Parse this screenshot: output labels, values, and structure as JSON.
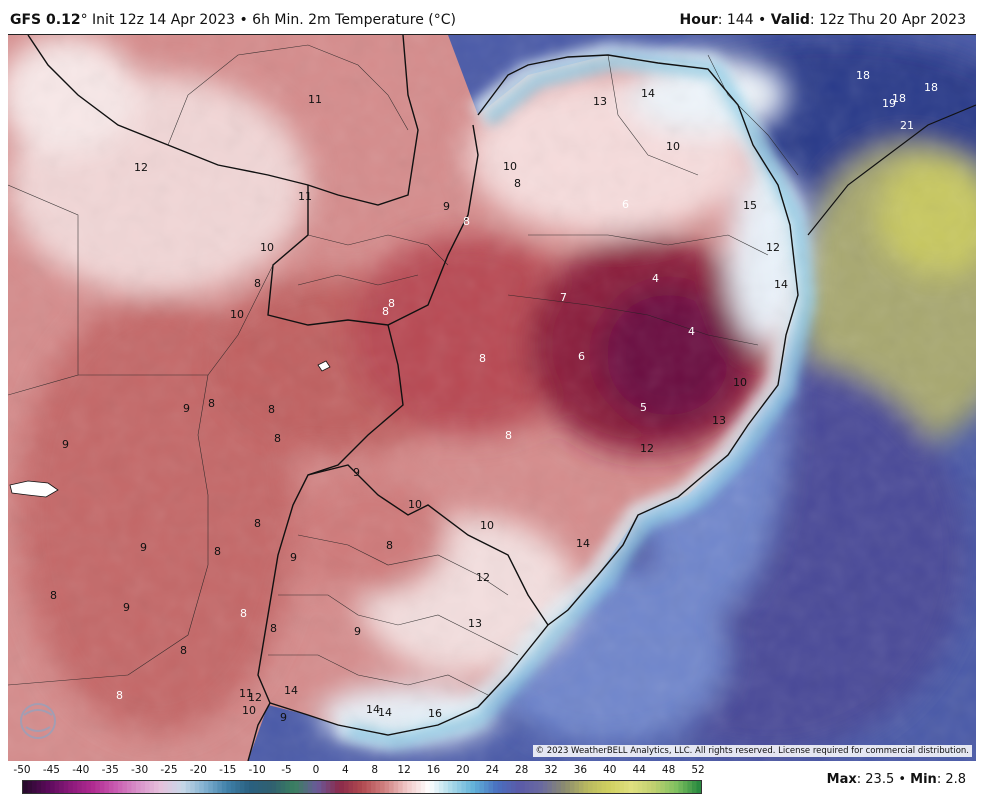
{
  "header": {
    "model": "GFS 0.12",
    "degree_sign": "°",
    "run_info": " Init 12z 14 Apr 2023 • 6h Min. 2m Temperature (°C)",
    "hour_label": "Hour",
    "hour_value": ": 144 • ",
    "valid_label": "Valid",
    "valid_value": ": 12z Thu 20 Apr 2023"
  },
  "map": {
    "copyright": "© 2023 WeatherBELL Analytics, LLC. All rights reserved. License required for commercial distribution.",
    "labels": [
      {
        "text": "11"
      },
      {
        "text": "12"
      },
      {
        "text": "11"
      },
      {
        "text": "9"
      },
      {
        "text": "10"
      },
      {
        "text": "8"
      },
      {
        "text": "10"
      },
      {
        "text": "8"
      },
      {
        "text": "8"
      },
      {
        "text": "8"
      },
      {
        "text": "10"
      },
      {
        "text": "8"
      },
      {
        "text": "13"
      },
      {
        "text": "14"
      },
      {
        "text": "10"
      },
      {
        "text": "6"
      },
      {
        "text": "15"
      },
      {
        "text": "7"
      },
      {
        "text": "4"
      },
      {
        "text": "4"
      },
      {
        "text": "6"
      },
      {
        "text": "8"
      },
      {
        "text": "5"
      },
      {
        "text": "10"
      },
      {
        "text": "13"
      },
      {
        "text": "12"
      },
      {
        "text": "8"
      },
      {
        "text": "9"
      },
      {
        "text": "8"
      },
      {
        "text": "9"
      },
      {
        "text": "8"
      },
      {
        "text": "8"
      },
      {
        "text": "9"
      },
      {
        "text": "10"
      },
      {
        "text": "10"
      },
      {
        "text": "9"
      },
      {
        "text": "8"
      },
      {
        "text": "14"
      },
      {
        "text": "8"
      },
      {
        "text": "12"
      },
      {
        "text": "8"
      },
      {
        "text": "9"
      },
      {
        "text": "8"
      },
      {
        "text": "9"
      },
      {
        "text": "13"
      },
      {
        "text": "8"
      },
      {
        "text": "8"
      },
      {
        "text": "8"
      },
      {
        "text": "11"
      },
      {
        "text": "12"
      },
      {
        "text": "14"
      },
      {
        "text": "10"
      },
      {
        "text": "9"
      },
      {
        "text": "14"
      },
      {
        "text": "14"
      },
      {
        "text": "16"
      },
      {
        "text": "18"
      },
      {
        "text": "18"
      },
      {
        "text": "19"
      },
      {
        "text": "18"
      },
      {
        "text": "21"
      },
      {
        "text": "14"
      },
      {
        "text": "12"
      },
      {
        "text": "9"
      },
      {
        "text": "8"
      }
    ]
  },
  "colorbar": {
    "ticks": [
      "-50",
      "-45",
      "-40",
      "-35",
      "-30",
      "-25",
      "-20",
      "-15",
      "-10",
      "-5",
      "0",
      "4",
      "8",
      "12",
      "16",
      "20",
      "24",
      "28",
      "32",
      "36",
      "40",
      "44",
      "48",
      "52"
    ],
    "colors": [
      "#2a0a2e",
      "#5a0a5a",
      "#8a1a7a",
      "#b02a90",
      "#c85ab0",
      "#d890c8",
      "#e6c0dc",
      "#c8d8e8",
      "#80b0d0",
      "#4080a8",
      "#2a6080",
      "#306070",
      "#3a8060",
      "#6a5a9a",
      "#8a2a4a",
      "#b04a50",
      "#d08080",
      "#f0c8c8",
      "#ffffff",
      "#a8d8e8",
      "#60b0d8",
      "#4a70c0",
      "#5a5aa8",
      "#6a6aa0",
      "#8a8a70",
      "#b8b860",
      "#d0d060",
      "#e0e080",
      "#c0d070",
      "#80c060",
      "#2a8a40"
    ]
  },
  "stats": {
    "max_label": "Max",
    "max_value": ": 23.5 • ",
    "min_label": "Min",
    "min_value": ": 2.8"
  }
}
